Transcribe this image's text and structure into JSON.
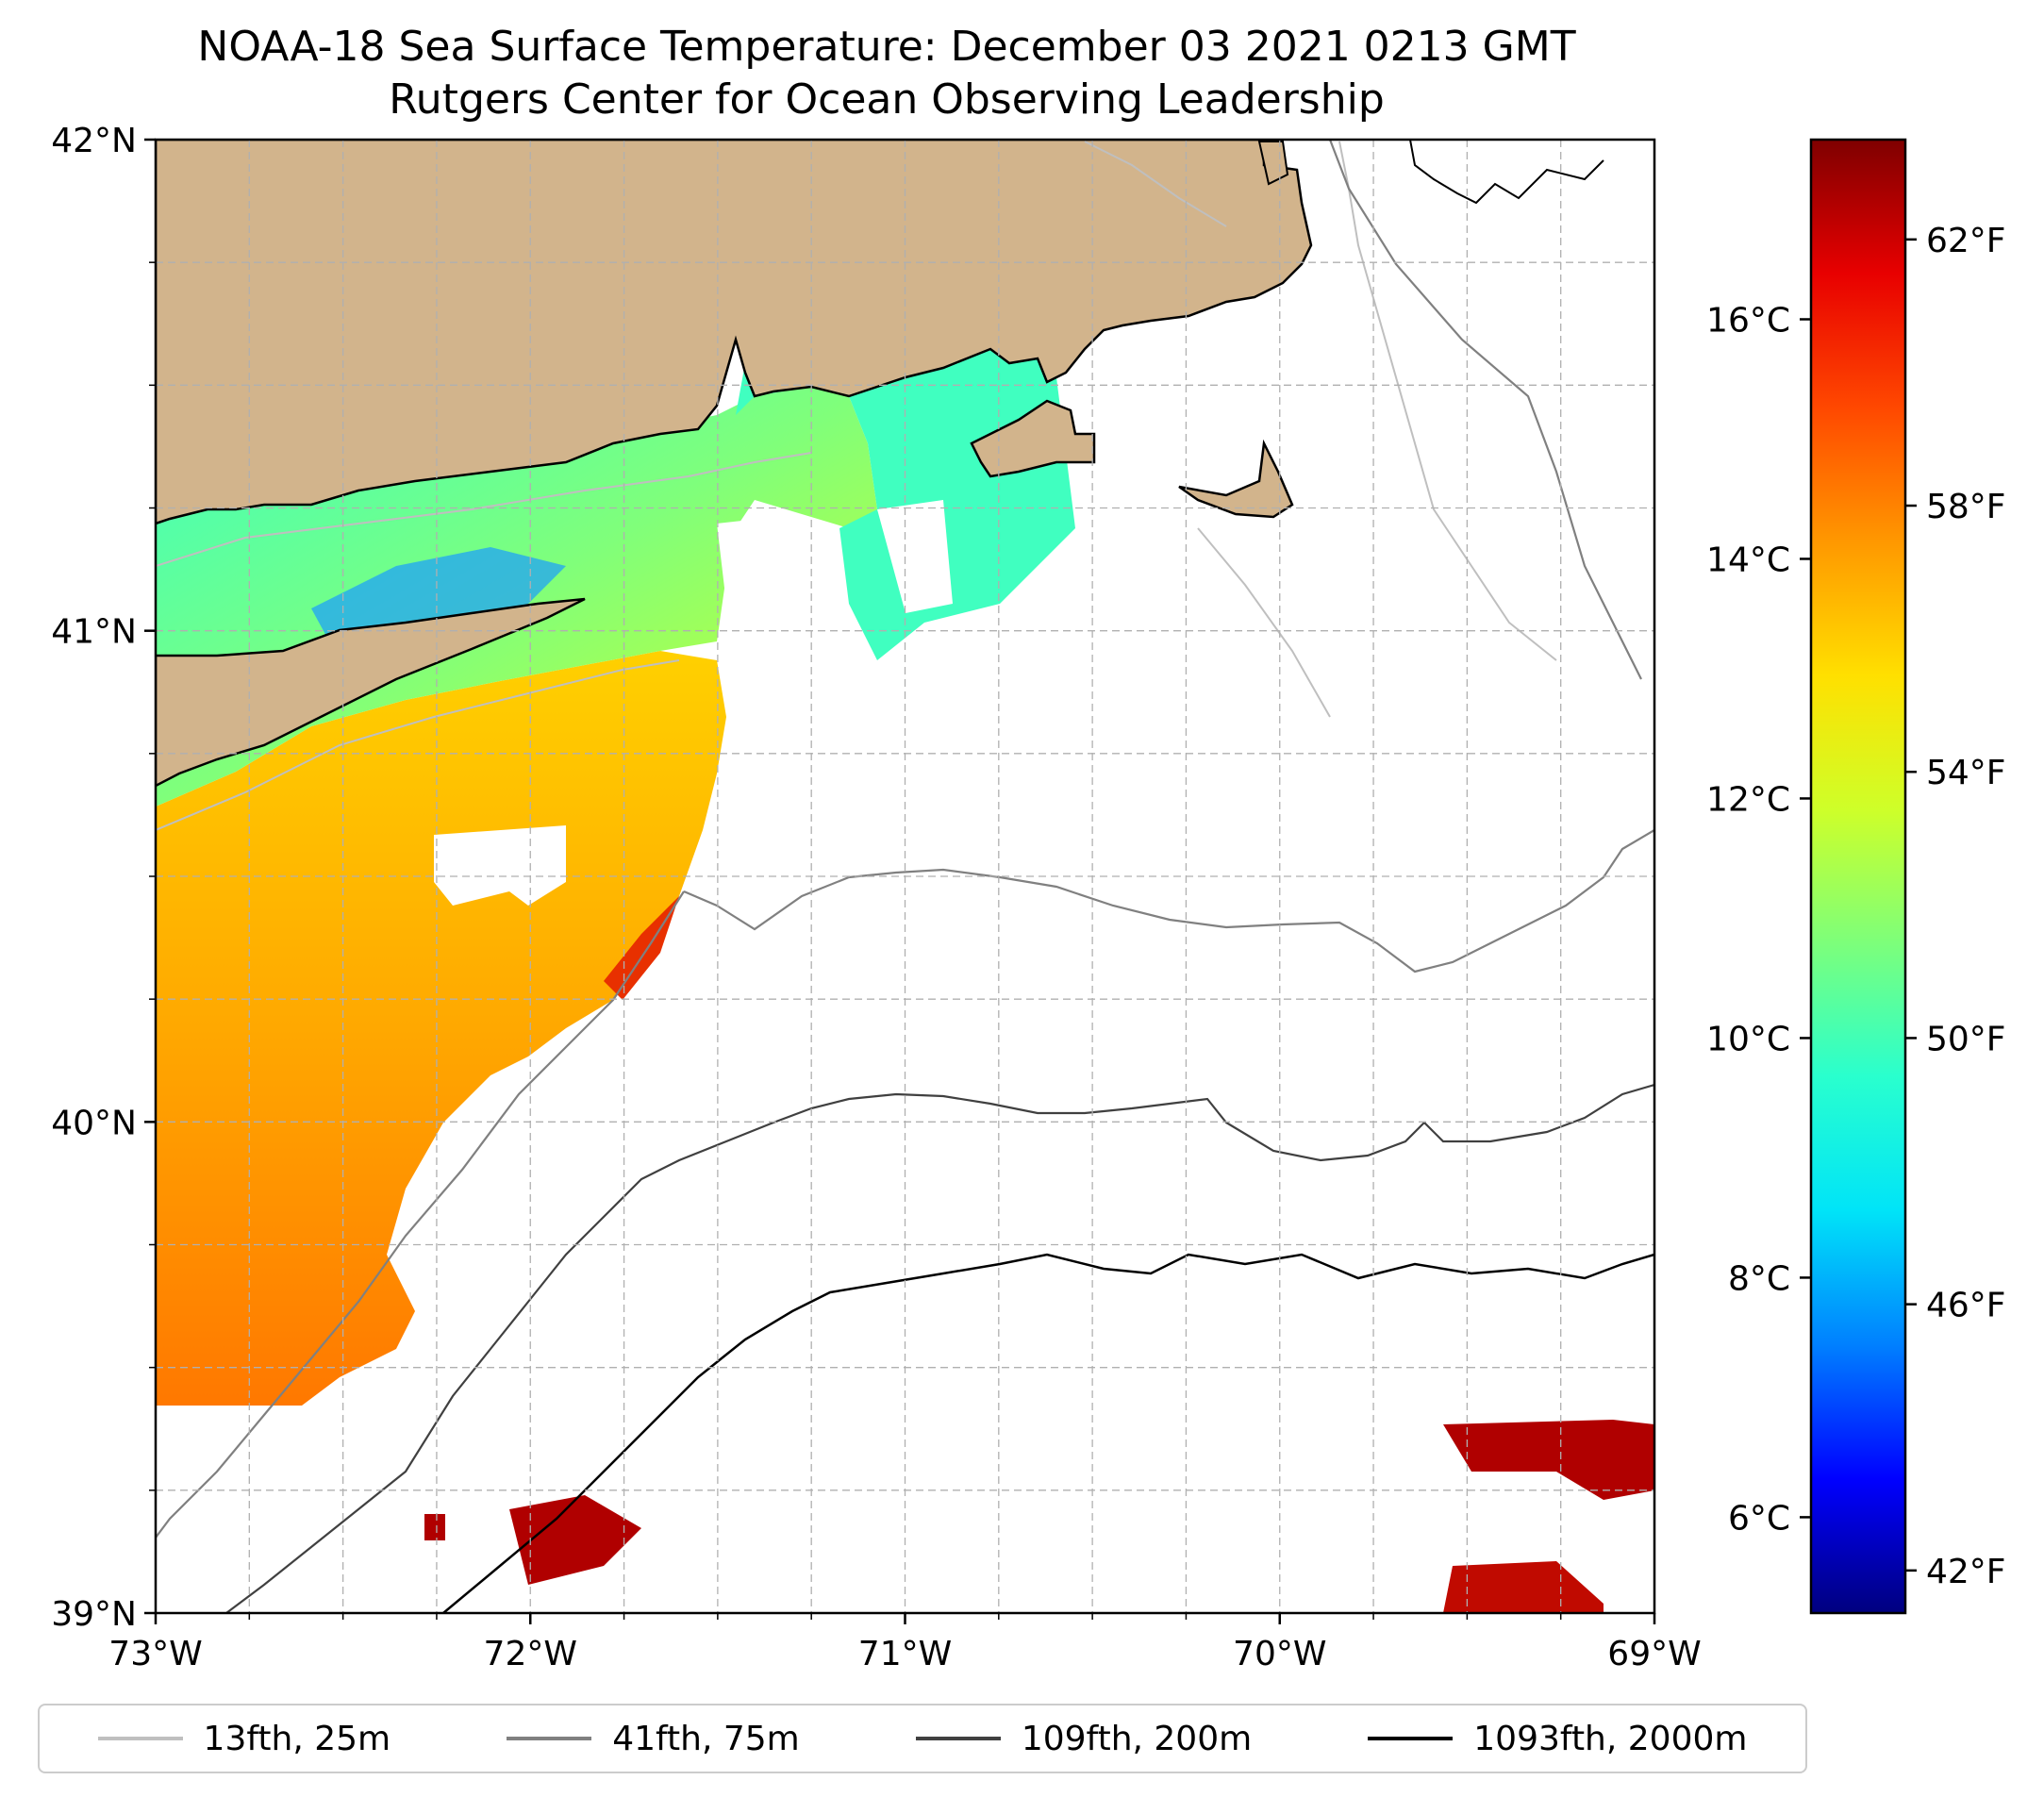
{
  "title": {
    "line1": "NOAA-18 Sea Surface Temperature: December 03 2021 0213 GMT",
    "line2": "Rutgers Center for Ocean Observing Leadership"
  },
  "axes": {
    "lat_labels": [
      "42°N",
      "41°N",
      "40°N",
      "39°N"
    ],
    "lon_labels": [
      "73°W",
      "72°W",
      "71°W",
      "70°W",
      "69°W"
    ],
    "lat_range": [
      39,
      42
    ],
    "lon_range": [
      -73,
      -69
    ]
  },
  "colorbar": {
    "f_labels": [
      "62°F",
      "58°F",
      "54°F",
      "50°F",
      "46°F",
      "42°F"
    ],
    "c_labels": [
      "16°C",
      "14°C",
      "12°C",
      "10°C",
      "8°C",
      "6°C"
    ],
    "c_values": [
      16,
      14,
      12,
      10,
      8,
      6
    ],
    "range_c": [
      5.2,
      17.5
    ],
    "stops": [
      "#00007f",
      "#0000ff",
      "#0080ff",
      "#00e4f8",
      "#29ffce",
      "#7dff7a",
      "#ceff29",
      "#ffe000",
      "#ff9800",
      "#ff4800",
      "#e80000",
      "#7f0000"
    ]
  },
  "legend": [
    {
      "label": "13fth, 25m",
      "color": "#bfbfbf"
    },
    {
      "label": "41fth, 75m",
      "color": "#808080"
    },
    {
      "label": "109fth, 200m",
      "color": "#404040"
    },
    {
      "label": "1093fth, 2000m",
      "color": "#000000"
    }
  ],
  "colors": {
    "land": "#d2b48c",
    "grid": "#b0b0b0"
  }
}
